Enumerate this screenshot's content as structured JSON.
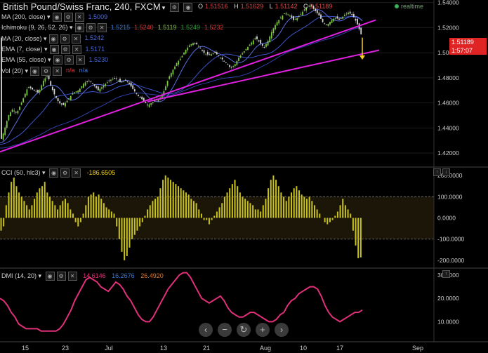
{
  "header": {
    "title": "British Pound/Swiss Franc, 240, FXCM",
    "ohlc": [
      {
        "label": "O",
        "value": "1.51516"
      },
      {
        "label": "H",
        "value": "1.51629"
      },
      {
        "label": "L",
        "value": "1.51142"
      },
      {
        "label": "C",
        "value": "1.51189"
      }
    ],
    "realtime_label": "realtime"
  },
  "indicators": [
    {
      "label": "MA (200, close)",
      "values": [
        "1.5009"
      ],
      "colors": [
        "#4a6adf"
      ]
    },
    {
      "label": "Ichimoku (9, 26, 52, 26)",
      "values": [
        "1.5215",
        "1.5240",
        "1.5119",
        "1.5249",
        "1.5232"
      ],
      "colors": [
        "#3a7bd5",
        "#d33",
        "#8bc34a",
        "#2e9d3a",
        "#d33"
      ]
    },
    {
      "label": "MA (20, close)",
      "values": [
        "1.5242"
      ],
      "colors": [
        "#4a6adf"
      ]
    },
    {
      "label": "EMA (7, close)",
      "values": [
        "1.5171"
      ],
      "colors": [
        "#4a6adf"
      ]
    },
    {
      "label": "EMA (55, close)",
      "values": [
        "1.5230"
      ],
      "colors": [
        "#4a6adf"
      ]
    },
    {
      "label": "Vol (20)",
      "values": [
        "n/a",
        "n/a"
      ],
      "colors": [
        "#d33",
        "#3a7bd5"
      ]
    }
  ],
  "cci_panel": {
    "label": "CCI (50, hlc3)",
    "value": "-186.6505"
  },
  "dmi_panel": {
    "label": "DMI (14, 20)",
    "values": [
      "14.6146",
      "16.2676",
      "26.4920"
    ],
    "colors": [
      "#e0307a",
      "#3a7bd5",
      "#e07b2a"
    ]
  },
  "price_tags": [
    {
      "value": "1.51189",
      "color": "#e02424"
    },
    {
      "value": "1:57:07",
      "color": "#e02424"
    }
  ],
  "nav_buttons": [
    "back-icon",
    "zoom-out-icon",
    "reset-icon",
    "zoom-in-icon",
    "forward-icon"
  ],
  "nav_glyphs": [
    "‹",
    "−",
    "↻",
    "+",
    "›"
  ],
  "chart_data": [
    {
      "type": "candlestick",
      "title": "British Pound/Swiss Franc, 240, FXCM",
      "x_ticks": [
        "15",
        "23",
        "Jul",
        "13",
        "21",
        "Aug",
        "10",
        "17",
        "Sep"
      ],
      "y_ticks": [
        "1.54000",
        "1.52000",
        "1.50000",
        "1.48000",
        "1.46000",
        "1.44000",
        "1.42000"
      ],
      "ylim": [
        1.41,
        1.542
      ],
      "close_path": [
        [
          0,
          1.428
        ],
        [
          6,
          1.438
        ],
        [
          12,
          1.45
        ],
        [
          18,
          1.455
        ],
        [
          24,
          1.452
        ],
        [
          32,
          1.462
        ],
        [
          40,
          1.473
        ],
        [
          48,
          1.47
        ],
        [
          55,
          1.468
        ],
        [
          62,
          1.478
        ],
        [
          68,
          1.482
        ],
        [
          72,
          1.474
        ],
        [
          78,
          1.466
        ],
        [
          84,
          1.46
        ],
        [
          90,
          1.458
        ],
        [
          96,
          1.462
        ],
        [
          104,
          1.468
        ],
        [
          112,
          1.47
        ],
        [
          120,
          1.476
        ],
        [
          128,
          1.478
        ],
        [
          134,
          1.474
        ],
        [
          140,
          1.47
        ],
        [
          148,
          1.474
        ],
        [
          156,
          1.478
        ],
        [
          164,
          1.48
        ],
        [
          172,
          1.476
        ],
        [
          180,
          1.478
        ],
        [
          188,
          1.472
        ],
        [
          196,
          1.466
        ],
        [
          204,
          1.462
        ],
        [
          210,
          1.458
        ],
        [
          216,
          1.46
        ],
        [
          222,
          1.462
        ],
        [
          228,
          1.464
        ],
        [
          234,
          1.47
        ],
        [
          240,
          1.48
        ],
        [
          246,
          1.486
        ],
        [
          252,
          1.492
        ],
        [
          258,
          1.496
        ],
        [
          264,
          1.502
        ],
        [
          270,
          1.506
        ],
        [
          276,
          1.508
        ],
        [
          282,
          1.506
        ],
        [
          290,
          1.5
        ],
        [
          298,
          1.498
        ],
        [
          306,
          1.5
        ],
        [
          314,
          1.496
        ],
        [
          322,
          1.492
        ],
        [
          328,
          1.488
        ],
        [
          334,
          1.49
        ],
        [
          340,
          1.496
        ],
        [
          346,
          1.5
        ],
        [
          352,
          1.504
        ],
        [
          358,
          1.508
        ],
        [
          364,
          1.512
        ],
        [
          370,
          1.508
        ],
        [
          376,
          1.504
        ],
        [
          382,
          1.51
        ],
        [
          388,
          1.518
        ],
        [
          394,
          1.524
        ],
        [
          400,
          1.528
        ],
        [
          406,
          1.532
        ],
        [
          412,
          1.53
        ],
        [
          418,
          1.526
        ],
        [
          424,
          1.528
        ],
        [
          430,
          1.532
        ],
        [
          436,
          1.536
        ],
        [
          442,
          1.538
        ],
        [
          448,
          1.534
        ],
        [
          454,
          1.53
        ],
        [
          460,
          1.524
        ],
        [
          466,
          1.522
        ],
        [
          472,
          1.526
        ],
        [
          478,
          1.528
        ],
        [
          484,
          1.526
        ],
        [
          490,
          1.53
        ],
        [
          496,
          1.532
        ],
        [
          502,
          1.53
        ],
        [
          508,
          1.524
        ],
        [
          512,
          1.518
        ],
        [
          516,
          1.512
        ]
      ],
      "trendlines": [
        {
          "name": "upper",
          "color": "#e020e0",
          "from": [
            0,
            1.421
          ],
          "to": [
            535,
            1.526
          ]
        },
        {
          "name": "lower",
          "color": "#e020e0",
          "from": [
            210,
            1.461
          ],
          "to": [
            540,
            1.502
          ]
        }
      ],
      "arrow": {
        "color": "#f5d21a",
        "from": [
          516,
          1.512
        ],
        "to": [
          516,
          1.495
        ]
      }
    },
    {
      "type": "bar",
      "title": "CCI (50, hlc3)",
      "y_ticks": [
        "200.0000",
        "100.0000",
        "0.0000",
        "-100.0000",
        "-200.0000"
      ],
      "ylim": [
        -230,
        240
      ],
      "levels": [
        100,
        -100
      ],
      "values": [
        -60,
        -40,
        60,
        120,
        170,
        190,
        150,
        120,
        100,
        80,
        60,
        40,
        60,
        90,
        120,
        140,
        150,
        170,
        120,
        100,
        80,
        60,
        40,
        60,
        80,
        90,
        70,
        40,
        20,
        -20,
        -40,
        -20,
        20,
        60,
        100,
        110,
        120,
        100,
        110,
        90,
        70,
        50,
        40,
        30,
        20,
        -40,
        -100,
        -160,
        -200,
        -180,
        -140,
        -100,
        -80,
        -60,
        -40,
        -20,
        10,
        40,
        60,
        80,
        90,
        100,
        140,
        180,
        200,
        190,
        180,
        170,
        160,
        150,
        140,
        130,
        120,
        110,
        90,
        80,
        70,
        40,
        20,
        -10,
        -10,
        -30,
        -10,
        10,
        30,
        50,
        70,
        100,
        120,
        140,
        160,
        180,
        150,
        120,
        100,
        90,
        80,
        70,
        60,
        40,
        40,
        30,
        60,
        90,
        140,
        180,
        200,
        180,
        150,
        120,
        100,
        80,
        100,
        120,
        140,
        150,
        130,
        110,
        100,
        90,
        100,
        80,
        60,
        40,
        20,
        0,
        -20,
        -30,
        -20,
        -10,
        10,
        30,
        60,
        90,
        60,
        40,
        20,
        -60,
        -130,
        -190,
        -186
      ]
    },
    {
      "type": "line",
      "title": "DMI (14, 20)",
      "y_ticks": [
        "30.0000",
        "20.0000",
        "10.0000"
      ],
      "ylim": [
        2,
        33
      ],
      "series": [
        {
          "name": "ADX",
          "color": "#e0307a",
          "values": [
            20,
            19,
            17,
            14,
            12,
            9,
            8,
            7,
            7,
            7,
            7,
            6,
            6,
            6,
            6,
            6,
            7,
            9,
            12,
            15,
            19,
            22,
            25,
            28,
            29,
            28,
            27,
            25,
            24,
            23,
            25,
            27,
            26,
            24,
            21,
            19,
            16,
            13,
            11,
            10,
            10,
            12,
            15,
            18,
            21,
            24,
            26,
            28,
            30,
            31,
            31,
            29,
            26,
            23,
            20,
            19,
            18,
            19,
            20,
            21,
            19,
            16,
            14,
            13,
            12,
            12,
            13,
            14,
            14,
            13,
            12,
            11,
            10,
            10,
            11,
            13,
            14,
            17,
            19,
            20,
            22,
            23,
            24,
            25,
            25,
            24,
            21,
            17,
            14,
            12,
            11,
            10,
            11,
            12,
            13,
            14,
            14,
            15
          ]
        }
      ]
    }
  ]
}
